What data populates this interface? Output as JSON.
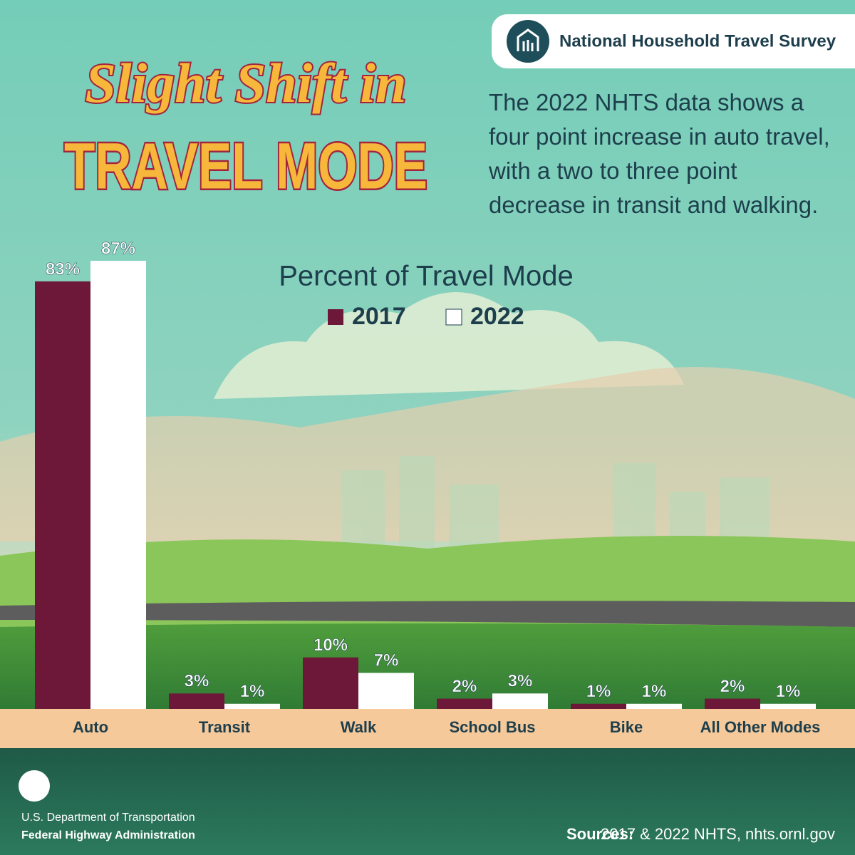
{
  "header": {
    "badge": "National Household Travel Survey"
  },
  "headline": {
    "line1": "Slight Shift in",
    "line2": "TRAVEL MODE"
  },
  "description": "The 2022 NHTS data shows a four point increase in auto travel, with a two to three point decrease in transit and walking.",
  "chart_data": {
    "type": "bar",
    "title": "Percent of Travel Mode",
    "categories": [
      "Auto",
      "Transit",
      "Walk",
      "School Bus",
      "Bike",
      "All Other Modes"
    ],
    "series": [
      {
        "name": "2017",
        "color": "#6d1839",
        "values": [
          83,
          3,
          10,
          2,
          1,
          2
        ],
        "value_labels": [
          "83%",
          "3%",
          "10%",
          "2%",
          "1%",
          "2%"
        ]
      },
      {
        "name": "2022",
        "color": "#ffffff",
        "values": [
          87,
          1,
          7,
          3,
          1,
          1
        ],
        "value_labels": [
          "87%",
          "1%",
          "7%",
          "3%",
          "1%",
          "1%"
        ]
      }
    ],
    "ylim": [
      0,
      100
    ]
  },
  "footer": {
    "agency": "U.S. Department of Transportation",
    "administration": "Federal Highway Administration",
    "sources_label": "Sources:",
    "sources": "2017 & 2022 NHTS, nhts.ornl.gov"
  }
}
